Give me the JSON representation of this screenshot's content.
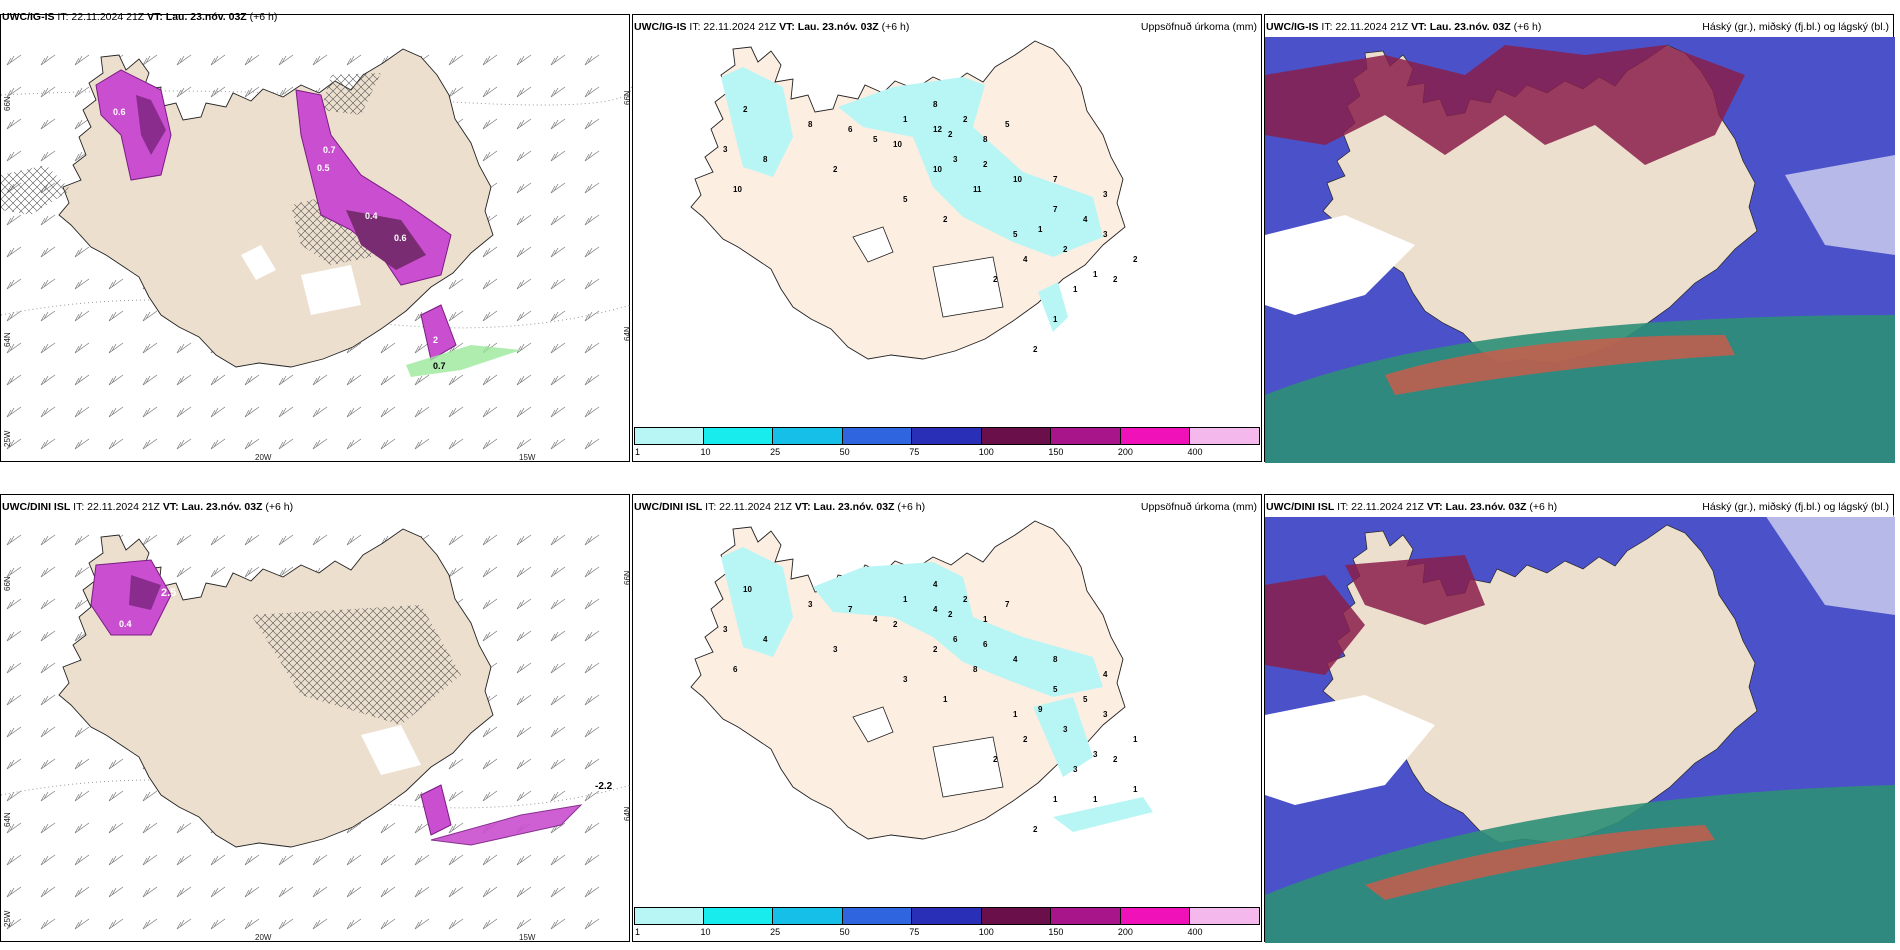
{
  "panels": {
    "p1": {
      "model": "UWC/IG-IS",
      "it": "IT: 22.11.2024 21Z",
      "vt": "VT: Lau. 23.nóv. 03Z",
      "lead": "(+6 h)"
    },
    "p2": {
      "model": "UWC/IG-IS",
      "it": "IT: 22.11.2024 21Z",
      "vt": "VT: Lau. 23.nóv. 03Z",
      "lead": "(+6 h)",
      "right_title": "Uppsöfnuð úrkoma (mm)"
    },
    "p3": {
      "model": "UWC/IG-IS",
      "it": "IT: 22.11.2024 21Z",
      "vt": "VT: Lau. 23.nóv. 03Z",
      "lead": "(+6 h)",
      "right_title": "Háský (gr.), miðský (fj.bl.) og lágský (bl.)"
    },
    "p4": {
      "model": "UWC/DINI ISL",
      "it": "IT: 22.11.2024 21Z",
      "vt": "VT: Lau. 23.nóv. 03Z",
      "lead": "(+6 h)"
    },
    "p5": {
      "model": "UWC/DINI ISL",
      "it": "IT: 22.11.2024 21Z",
      "vt": "VT: Lau. 23.nóv. 03Z",
      "lead": "(+6 h)",
      "right_title": "Uppsöfnuð úrkoma (mm)"
    },
    "p6": {
      "model": "UWC/DINI ISL",
      "it": "IT: 22.11.2024 21Z",
      "vt": "VT: Lau. 23.nóv. 03Z",
      "lead": "(+6 h)",
      "right_title": "Háský (gr.), miðský (fj.bl.) og lágský (bl.)"
    }
  },
  "axis_labels": {
    "lat66": "66N",
    "lat64": "64N",
    "lon25": "25W",
    "lon20": "20W",
    "lon15": "15W"
  },
  "colorbar": {
    "ticks": [
      "1",
      "10",
      "25",
      "50",
      "75",
      "100",
      "150",
      "200",
      "400"
    ],
    "colors": [
      "#b8f5f5",
      "#19ecec",
      "#15bfe8",
      "#2f66e0",
      "#2a2fb8",
      "#6a0f4a",
      "#a8158a",
      "#f012b8",
      "#f5b8ec"
    ]
  },
  "precip_values_top": [
    "2",
    "8",
    "6",
    "5",
    "10",
    "8",
    "12",
    "1",
    "2",
    "3",
    "5",
    "2",
    "10",
    "11",
    "7",
    "7",
    "1",
    "5",
    "4",
    "3",
    "3",
    "2",
    "1",
    "1",
    "1",
    "2",
    "4",
    "2",
    "8",
    "10",
    "3",
    "8",
    "10",
    "2",
    "5",
    "2",
    "2",
    "2",
    "2"
  ],
  "precip_values_bottom": [
    "10",
    "3",
    "7",
    "4",
    "2",
    "4",
    "4",
    "1",
    "2",
    "6",
    "7",
    "6",
    "4",
    "8",
    "8",
    "5",
    "9",
    "1",
    "2",
    "4",
    "3",
    "3",
    "3",
    "1",
    "3",
    "2",
    "5",
    "2",
    "1",
    "2",
    "3",
    "4",
    "6",
    "3",
    "3",
    "1",
    "2",
    "2",
    "1",
    "1",
    "1"
  ],
  "snow_labels_top": [
    "0.6",
    "0.7",
    "0.4",
    "0.6",
    "0.5",
    "2",
    "0.7"
  ],
  "snow_labels_bottom": [
    "2.5",
    "0.4",
    "-2.2"
  ]
}
